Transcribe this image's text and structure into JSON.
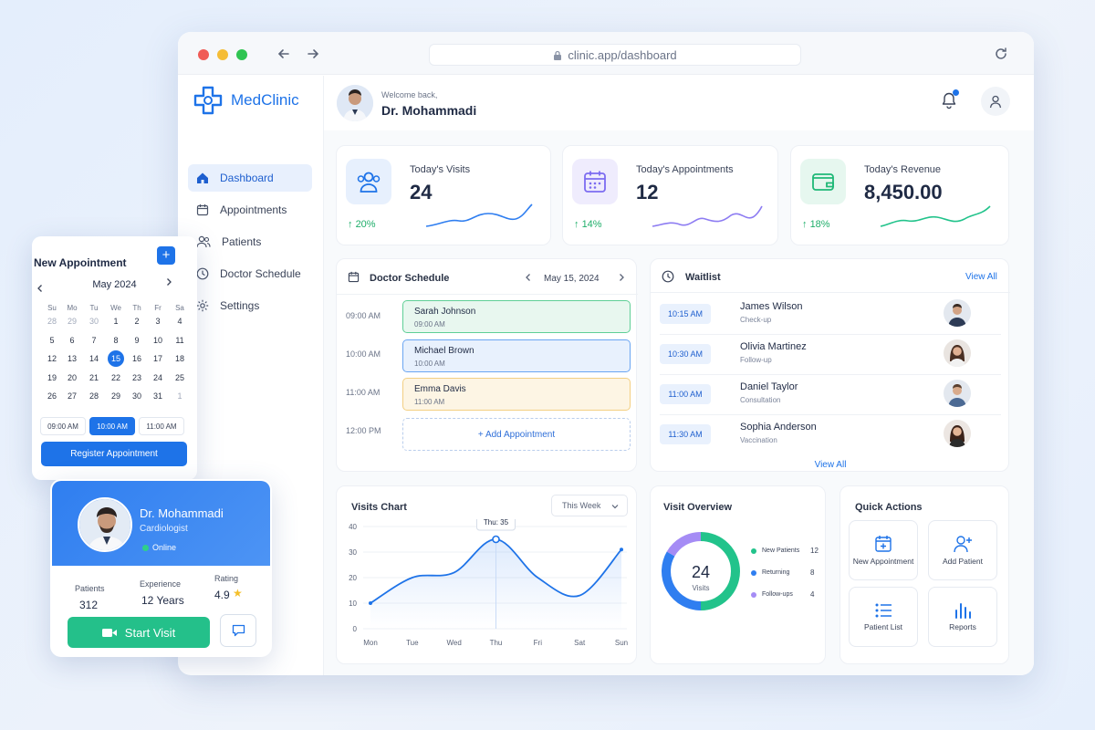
{
  "browser": {
    "url": "clinic.app/dashboard"
  },
  "brand": {
    "name": "MedClinic",
    "accent": "#1e73e8"
  },
  "sidebar": {
    "items": [
      {
        "label": "Dashboard",
        "icon": "home-icon",
        "active": true
      },
      {
        "label": "Appointments",
        "icon": "calendar-icon"
      },
      {
        "label": "Patients",
        "icon": "users-icon"
      },
      {
        "label": "Doctor Schedule",
        "icon": "clock-icon"
      },
      {
        "label": "Settings",
        "icon": "gear-icon"
      }
    ]
  },
  "header": {
    "welcome": "Welcome back,",
    "name": "Dr. Mohammadi"
  },
  "stats": [
    {
      "label": "Today's Visits",
      "value": "24",
      "change": "20%",
      "color": "#1e73e8"
    },
    {
      "label": "Today's Appointments",
      "value": "12",
      "change": "14%",
      "color": "#7c6cf0"
    },
    {
      "label": "Today's Revenue",
      "value": "8,450.00",
      "change": "18%",
      "color": "#1fb877"
    }
  ],
  "schedule": {
    "title": "Doctor Schedule",
    "date": "May 15, 2024",
    "slots": [
      {
        "time": "09:00 AM",
        "name": "Sarah Johnson",
        "sub": "09:00 AM",
        "bg": "#e8f7ef",
        "border": "#5fcf96"
      },
      {
        "time": "10:00 AM",
        "name": "Michael Brown",
        "sub": "10:00 AM",
        "bg": "#e8f1fd",
        "border": "#6aa5f2"
      },
      {
        "time": "11:00 AM",
        "name": "Emma Davis",
        "sub": "11:00 AM",
        "bg": "#fdf5e4",
        "border": "#f3cf82"
      }
    ],
    "empty_time": "12:00 PM",
    "add_label": "+ Add Appointment"
  },
  "waitlist": {
    "title": "Waitlist",
    "view_all_top": "View All",
    "view_all_bottom": "View All",
    "rows": [
      {
        "time": "10:15 AM",
        "name": "James Wilson",
        "type": "Check-up",
        "gender": "m"
      },
      {
        "time": "10:30 AM",
        "name": "Olivia Martinez",
        "type": "Follow-up",
        "gender": "f"
      },
      {
        "time": "11:00 AM",
        "name": "Daniel Taylor",
        "type": "Consultation",
        "gender": "m"
      },
      {
        "time": "11:30 AM",
        "name": "Sophia Anderson",
        "type": "Vaccination",
        "gender": "f"
      }
    ]
  },
  "visits_chart": {
    "title": "Visits Chart",
    "period": "This Week",
    "tooltip": "Thu: 35"
  },
  "chart_data": {
    "type": "line",
    "title": "Visits Chart",
    "categories": [
      "Mon",
      "Tue",
      "Wed",
      "Thu",
      "Fri",
      "Sat",
      "Sun"
    ],
    "values": [
      10,
      20,
      22,
      35,
      20,
      13,
      31
    ],
    "ylim": [
      0,
      40
    ],
    "yticks": [
      0,
      10,
      20,
      30,
      40
    ],
    "color": "#1e73e8"
  },
  "overview": {
    "title": "Visit Overview",
    "total": "24",
    "total_label": "Visits",
    "segments": [
      {
        "label": "New Patients",
        "value": 12,
        "color": "#22c38b"
      },
      {
        "label": "Returning",
        "value": 8,
        "color": "#2f7ef0"
      },
      {
        "label": "Follow-ups",
        "value": 4,
        "color": "#a58cf5"
      }
    ]
  },
  "quick_actions": {
    "title": "Quick Actions",
    "items": [
      {
        "label": "New Appointment",
        "icon": "calendar-plus-icon"
      },
      {
        "label": "Add Patient",
        "icon": "user-plus-icon"
      },
      {
        "label": "Patient List",
        "icon": "list-icon"
      },
      {
        "label": "Reports",
        "icon": "bar-chart-icon"
      }
    ]
  },
  "new_appointment": {
    "title": "New Appointment",
    "month": "May 2024",
    "dow": [
      "Su",
      "Mo",
      "Tu",
      "We",
      "Th",
      "Fr",
      "Sa"
    ],
    "days": [
      [
        "28",
        "29",
        "30",
        "1",
        "2",
        "3",
        "4"
      ],
      [
        "5",
        "6",
        "7",
        "8",
        "9",
        "10",
        "11"
      ],
      [
        "12",
        "13",
        "14",
        "15",
        "16",
        "17",
        "18"
      ],
      [
        "19",
        "20",
        "21",
        "22",
        "23",
        "24",
        "25"
      ],
      [
        "26",
        "27",
        "28",
        "29",
        "30",
        "31",
        "1"
      ]
    ],
    "selected": "15",
    "times": [
      "09:00 AM",
      "10:00 AM",
      "11:00 AM"
    ],
    "selected_time": "10:00 AM",
    "register_label": "Register Appointment"
  },
  "profile": {
    "name": "Dr. Mohammadi",
    "specialty": "Cardiologist",
    "status": "Online",
    "stats": [
      {
        "label": "Patients",
        "value": "312"
      },
      {
        "label": "Experience",
        "value": "12 Years"
      },
      {
        "label": "Rating",
        "value": "4.9"
      }
    ],
    "start_label": "Start Visit"
  }
}
